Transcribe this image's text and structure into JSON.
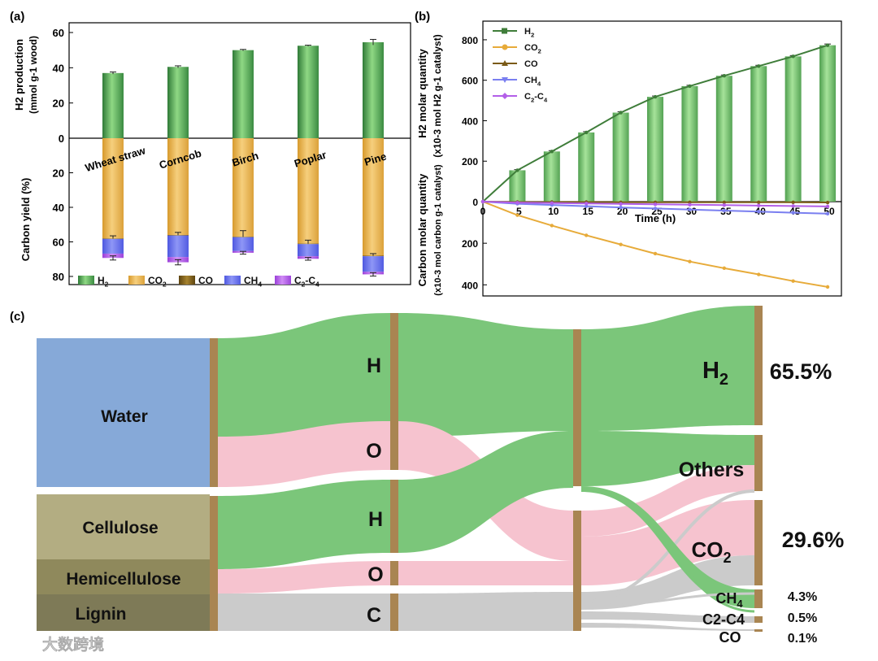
{
  "panel_labels": {
    "a": "(a)",
    "b": "(b)",
    "c": "(c)"
  },
  "watermark": "大数跨境",
  "colors": {
    "h2": "#3f8f46",
    "h2_light": "#8ad27c",
    "co2": "#e9b34a",
    "co": "#7a5a17",
    "ch4": "#6670ee",
    "c2c4": "#b35fe8",
    "green_flow": "#7bc67a",
    "pink_flow": "#f6c3cf",
    "grey_flow": "#cbcbcb",
    "node_brown": "#a98552",
    "water": "#86a9d8",
    "cellulose": "#b3ad82",
    "hemicellulose": "#8f895c",
    "lignin": "#7e7a57"
  },
  "chart_data": [
    {
      "type": "bar",
      "panel": "a",
      "categories": [
        "Wheat straw",
        "Corncob",
        "Birch",
        "Poplar",
        "Pine"
      ],
      "top": {
        "ylabel_line1": "H2 production",
        "ylabel_line2": "(mmol g-1 wood)",
        "ylim": [
          0,
          65
        ],
        "yticks": [
          "0",
          "20",
          "40",
          "60"
        ],
        "series": [
          {
            "name": "H2",
            "values": [
              37,
              40.5,
              50,
              52.5,
              54.5
            ],
            "errors": [
              0.6,
              0.6,
              0.4,
              0.3,
              1.6
            ]
          }
        ]
      },
      "bottom": {
        "ylabel": "Carbon yield (%)",
        "ylim": [
          0,
          85
        ],
        "yticks": [
          "0",
          "20",
          "40",
          "60",
          "80"
        ],
        "stack_order": [
          "CO2",
          "CO",
          "CH4",
          "C2-C4"
        ],
        "series": [
          {
            "name": "CO2",
            "values": [
              58,
              56,
              57,
              61,
              68
            ],
            "errors": [
              1.5,
              1.5,
              3.5,
              2.0,
              1.2
            ]
          },
          {
            "name": "CO",
            "values": [
              0.3,
              0.3,
              0.3,
              0.3,
              0.3
            ]
          },
          {
            "name": "CH4",
            "values": [
              8.5,
              12.5,
              8.0,
              7.0,
              9.0
            ]
          },
          {
            "name": "C2-C4",
            "values": [
              2.5,
              3.0,
              1.0,
              1.5,
              1.5
            ],
            "errors": [
              1.2,
              1.5,
              0.8,
              0.8,
              1.0
            ]
          }
        ]
      },
      "legend": [
        {
          "key": "h2",
          "label_main": "H",
          "label_sub": "2"
        },
        {
          "key": "co2",
          "label_main": "CO",
          "label_sub": "2"
        },
        {
          "key": "co",
          "label_main": "CO",
          "label_sub": ""
        },
        {
          "key": "ch4",
          "label_main": "CH",
          "label_sub": "4"
        },
        {
          "key": "c2c4",
          "label_main": "C",
          "label_sub": "2",
          "label_tail": "-C",
          "label_sub2": "4"
        }
      ]
    },
    {
      "type": "bar+line",
      "panel": "b",
      "xlabel": "Time (h)",
      "x": [
        0,
        5,
        10,
        15,
        20,
        25,
        30,
        35,
        40,
        45,
        50
      ],
      "xticks": [
        "0",
        "5",
        "10",
        "15",
        "20",
        "25",
        "30",
        "35",
        "40",
        "45",
        "50"
      ],
      "top": {
        "ylabel_line1": "H2 molar quantity",
        "ylabel_line2": "(x10-3 mol H2 g-1 catalyst)",
        "ylim": [
          0,
          860
        ],
        "yticks": [
          "0",
          "200",
          "400",
          "600",
          "800"
        ],
        "bars": [
          0,
          155,
          248,
          342,
          440,
          518,
          571,
          622,
          670,
          718,
          773
        ],
        "bar_errors": [
          0,
          3,
          4,
          4,
          4,
          4,
          4,
          4,
          4,
          4,
          6
        ]
      },
      "bottom": {
        "ylabel_line1": "Carbon molar quantity",
        "ylabel_line2": "(x10-3 mol carbon g-1 catalyst)",
        "ylim": [
          0,
          430
        ],
        "yticks": [
          "200",
          "400"
        ]
      },
      "series": [
        {
          "name": "H2",
          "key": "h2",
          "values": [
            0,
            155,
            248,
            342,
            440,
            518,
            571,
            622,
            670,
            718,
            773
          ]
        },
        {
          "name": "CO2",
          "key": "co2",
          "values": [
            0,
            -65,
            -115,
            -162,
            -206,
            -250,
            -288,
            -320,
            -350,
            -382,
            -410
          ]
        },
        {
          "name": "CO",
          "key": "co",
          "values": [
            0,
            -2,
            -2,
            -2,
            -3,
            -3,
            -3,
            -3,
            -3,
            -3,
            -4
          ]
        },
        {
          "name": "CH4",
          "key": "ch4",
          "values": [
            0,
            -10,
            -16,
            -22,
            -28,
            -33,
            -38,
            -43,
            -48,
            -53,
            -58
          ]
        },
        {
          "name": "C2-C4",
          "key": "c2c4",
          "values": [
            0,
            -5,
            -7,
            -9,
            -11,
            -13,
            -15,
            -17,
            -19,
            -21,
            -23
          ]
        }
      ],
      "legend": [
        {
          "key": "h2",
          "label_main": "H",
          "label_sub": "2",
          "marker": "square"
        },
        {
          "key": "co2",
          "label_main": "CO",
          "label_sub": "2",
          "marker": "circle"
        },
        {
          "key": "co",
          "label_main": "CO",
          "label_sub": "",
          "marker": "triangle"
        },
        {
          "key": "ch4",
          "label_main": "CH",
          "label_sub": "4",
          "marker": "triangle-down"
        },
        {
          "key": "c2c4",
          "label_main": "C",
          "label_sub": "2",
          "label_tail": "-C",
          "label_sub2": "4",
          "marker": "diamond"
        }
      ]
    },
    {
      "type": "sankey",
      "panel": "c",
      "sources": [
        {
          "id": "water",
          "label": "Water"
        },
        {
          "id": "cellulose",
          "label": "Cellulose"
        },
        {
          "id": "hemicellulose",
          "label": "Hemicellulose"
        },
        {
          "id": "lignin",
          "label": "Lignin"
        }
      ],
      "elements": [
        {
          "id": "h1",
          "label": "H"
        },
        {
          "id": "o1",
          "label": "O"
        },
        {
          "id": "h2",
          "label": "H"
        },
        {
          "id": "o2",
          "label": "O"
        },
        {
          "id": "c",
          "label": "C"
        }
      ],
      "products": [
        {
          "id": "h2",
          "label_main": "H",
          "label_sub": "2",
          "percent": "65.5%"
        },
        {
          "id": "others",
          "label_main": "Others",
          "label_sub": "",
          "percent": ""
        },
        {
          "id": "co2",
          "label_main": "CO",
          "label_sub": "2",
          "percent": "29.6%"
        },
        {
          "id": "ch4",
          "label_main": "CH",
          "label_sub": "4",
          "percent": "4.3%"
        },
        {
          "id": "c2c4",
          "label_main": "C2-C4",
          "label_sub": "",
          "percent": "0.5%"
        },
        {
          "id": "co",
          "label_main": "CO",
          "label_sub": "",
          "percent": "0.1%"
        }
      ]
    }
  ]
}
